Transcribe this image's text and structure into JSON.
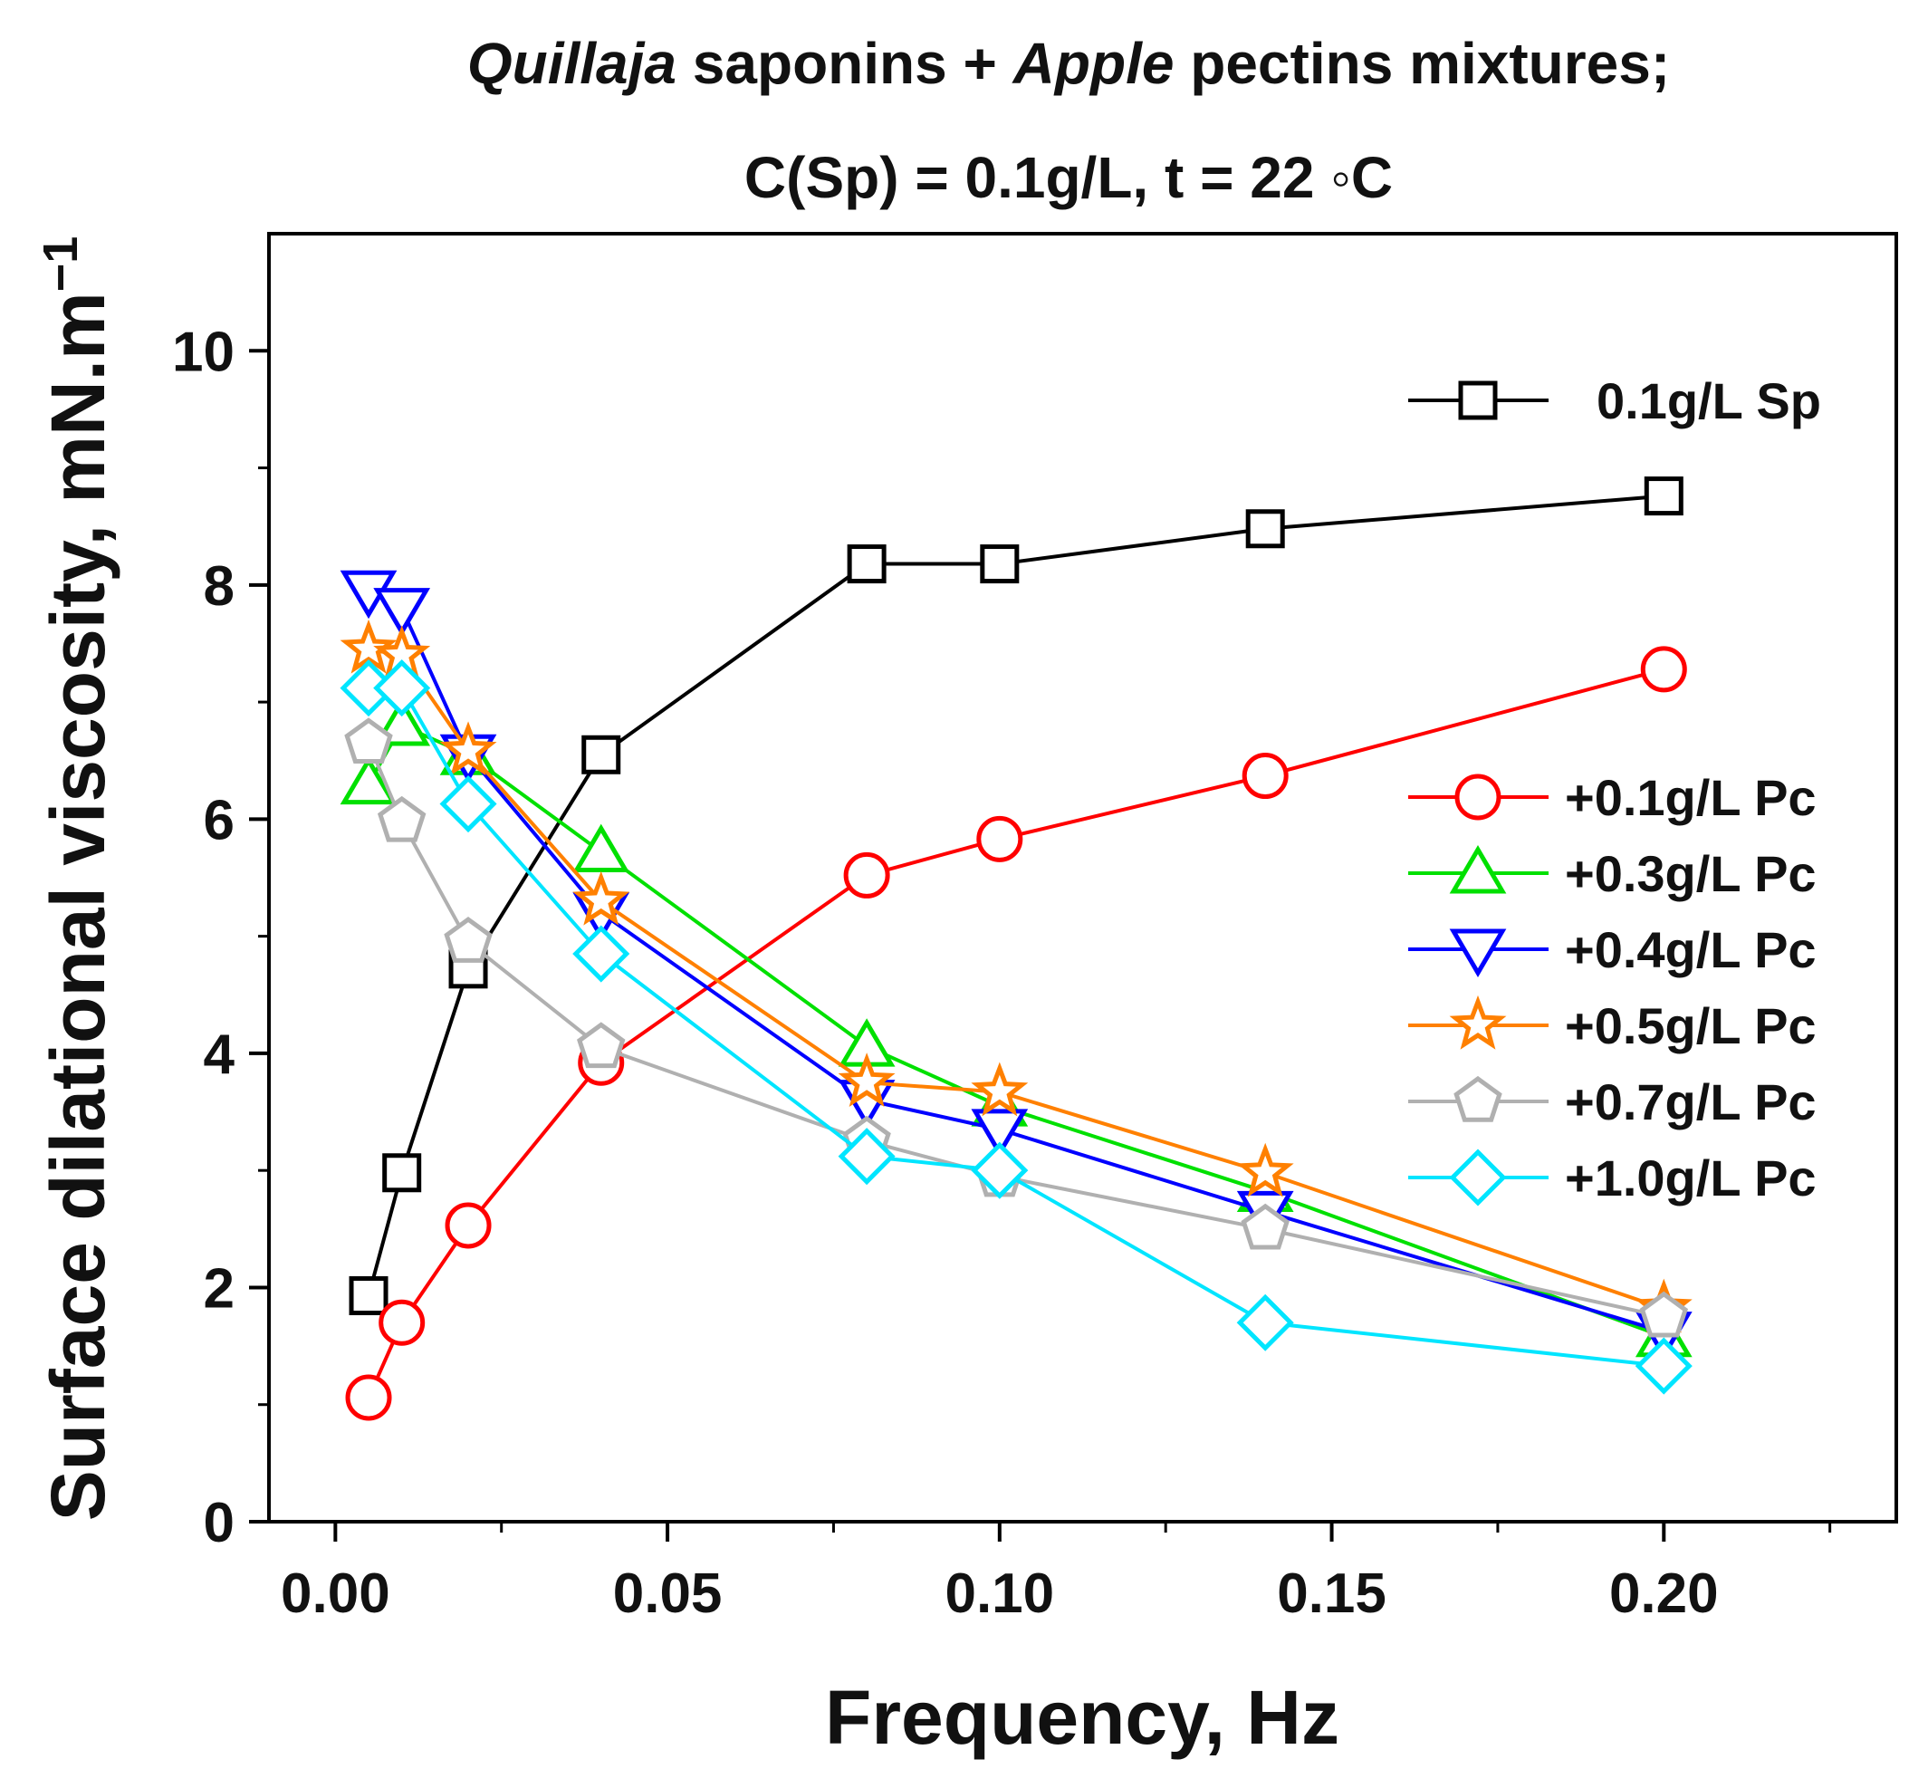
{
  "chart_data": {
    "type": "line",
    "title_parts": [
      {
        "text": "Quillaja",
        "italic": true
      },
      {
        "text": " saponins + ",
        "italic": false
      },
      {
        "text": "Apple",
        "italic": true
      },
      {
        "text": " pectins mixtures;",
        "italic": false
      }
    ],
    "subtitle": "C(Sp) = 0.1g/L, t = 22 ◦C",
    "xlabel": "Frequency, Hz",
    "ylabel": "Surface dilational viscosity, mN.m",
    "ylabel_sup": "−1",
    "xlim": [
      -0.01,
      0.235
    ],
    "ylim": [
      0,
      11
    ],
    "x_ticks": [
      0.0,
      0.05,
      0.1,
      0.15,
      0.2
    ],
    "x_tick_labels": [
      "0.00",
      "0.05",
      "0.10",
      "0.15",
      "0.20"
    ],
    "y_ticks": [
      0,
      2,
      4,
      6,
      8,
      10
    ],
    "y_tick_labels": [
      "0",
      "2",
      "4",
      "6",
      "8",
      "10"
    ],
    "x": [
      0.005,
      0.01,
      0.02,
      0.04,
      0.08,
      0.1,
      0.14,
      0.2
    ],
    "series": [
      {
        "name": "0.1g/L Sp",
        "color": "#000000",
        "marker": "square",
        "values": [
          1.93,
          2.98,
          4.72,
          6.55,
          8.18,
          8.18,
          8.48,
          8.76
        ]
      },
      {
        "name": "+0.1g/L Pc",
        "color": "#ff0000",
        "marker": "circle",
        "values": [
          1.06,
          1.7,
          2.53,
          3.92,
          5.52,
          5.83,
          6.37,
          7.28
        ]
      },
      {
        "name": "+0.3g/L Pc",
        "color": "#00e000",
        "marker": "triangle-up",
        "values": [
          6.3,
          6.8,
          6.55,
          5.72,
          4.06,
          3.55,
          2.82,
          1.58
        ]
      },
      {
        "name": "+0.4g/L Pc",
        "color": "#0000ff",
        "marker": "triangle-down",
        "values": [
          7.95,
          7.8,
          6.55,
          5.2,
          3.6,
          3.35,
          2.65,
          1.62
        ]
      },
      {
        "name": "+0.5g/L Pc",
        "color": "#ff8000",
        "marker": "star",
        "values": [
          7.45,
          7.4,
          6.58,
          5.3,
          3.75,
          3.67,
          2.98,
          1.82
        ]
      },
      {
        "name": "+0.7g/L Pc",
        "color": "#b0b0b0",
        "marker": "pentagon",
        "values": [
          6.65,
          5.98,
          4.95,
          4.05,
          3.25,
          2.95,
          2.5,
          1.75
        ]
      },
      {
        "name": "+1.0g/L Pc",
        "color": "#00e5ff",
        "marker": "diamond",
        "values": [
          7.12,
          7.12,
          6.13,
          4.85,
          3.12,
          3.0,
          1.7,
          1.33
        ]
      }
    ],
    "legend": "right",
    "grid": false
  }
}
